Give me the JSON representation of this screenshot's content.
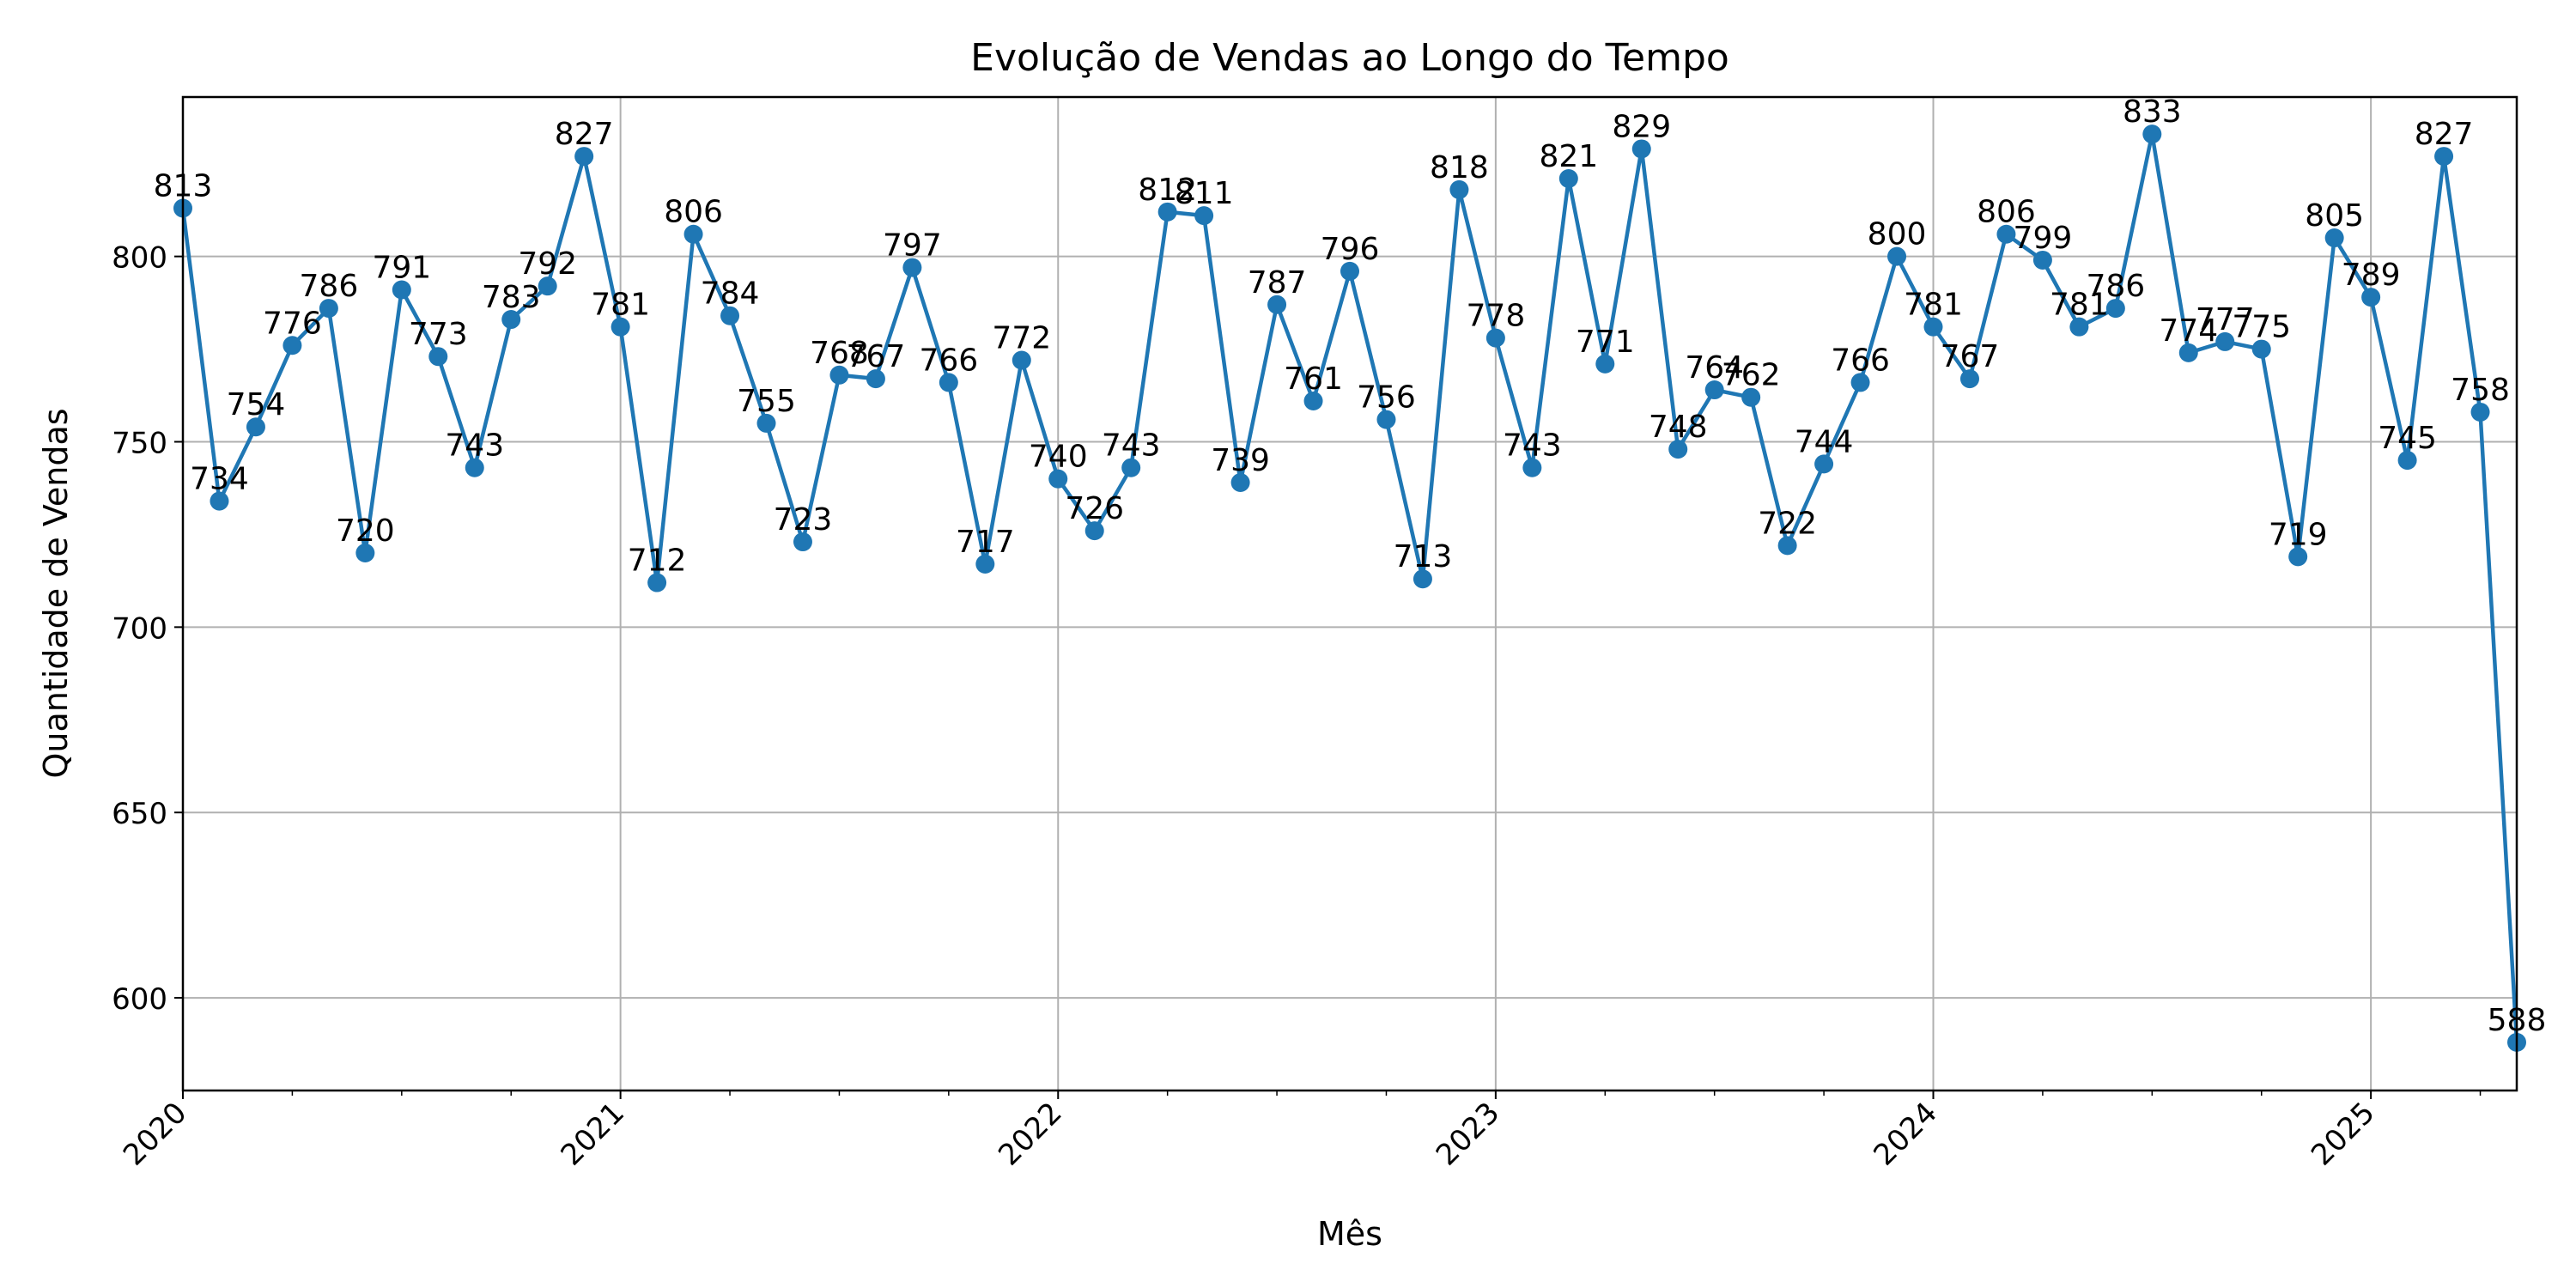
{
  "chart_data": {
    "type": "line",
    "title": "Evolução de Vendas ao Longo do Tempo",
    "xlabel": "Mês",
    "ylabel": "Quantidade de Vendas",
    "x": [
      "2020-01",
      "2020-02",
      "2020-03",
      "2020-04",
      "2020-05",
      "2020-06",
      "2020-07",
      "2020-08",
      "2020-09",
      "2020-10",
      "2020-11",
      "2020-12",
      "2021-01",
      "2021-02",
      "2021-03",
      "2021-04",
      "2021-05",
      "2021-06",
      "2021-07",
      "2021-08",
      "2021-09",
      "2021-10",
      "2021-11",
      "2021-12",
      "2022-01",
      "2022-02",
      "2022-03",
      "2022-04",
      "2022-05",
      "2022-06",
      "2022-07",
      "2022-08",
      "2022-09",
      "2022-10",
      "2022-11",
      "2022-12",
      "2023-01",
      "2023-02",
      "2023-03",
      "2023-04",
      "2023-05",
      "2023-06",
      "2023-07",
      "2023-08",
      "2023-09",
      "2023-10",
      "2023-11",
      "2023-12",
      "2024-01",
      "2024-02",
      "2024-03",
      "2024-04",
      "2024-05",
      "2024-06",
      "2024-07",
      "2024-08",
      "2024-09",
      "2024-10",
      "2024-11",
      "2024-12",
      "2025-01",
      "2025-02",
      "2025-03",
      "2025-04",
      "2025-05"
    ],
    "series": [
      {
        "values": [
          813,
          734,
          754,
          776,
          786,
          720,
          791,
          773,
          743,
          783,
          792,
          827,
          781,
          712,
          806,
          784,
          755,
          723,
          768,
          767,
          797,
          766,
          717,
          772,
          740,
          726,
          743,
          812,
          811,
          739,
          787,
          761,
          796,
          756,
          713,
          818,
          778,
          743,
          821,
          771,
          829,
          748,
          764,
          762,
          722,
          744,
          766,
          800,
          781,
          767,
          806,
          799,
          781,
          786,
          833,
          774,
          777,
          775,
          719,
          805,
          789,
          745,
          827,
          758,
          588
        ],
        "color": "#1f77b4"
      }
    ],
    "x_tick_labels": [
      "2020",
      "2021",
      "2022",
      "2023",
      "2024",
      "2025"
    ],
    "y_ticks": [
      600,
      650,
      700,
      750,
      800
    ],
    "ylim": [
      575,
      843
    ],
    "grid": true,
    "marker": "circle",
    "data_labels": true
  }
}
